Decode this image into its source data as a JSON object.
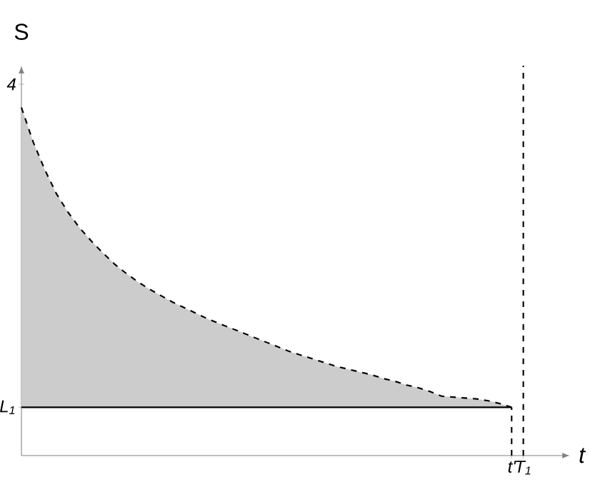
{
  "chart_data": {
    "type": "area",
    "xlabel": "t",
    "ylabel": "S",
    "categories": [
      null,
      null,
      null,
      null,
      null,
      null,
      null,
      null,
      null,
      null,
      null,
      null,
      null,
      null,
      null,
      null,
      null,
      null,
      null,
      null,
      null,
      null,
      null,
      null,
      null,
      null,
      null,
      null,
      null,
      null,
      null,
      null,
      null,
      null,
      null,
      null,
      null,
      null,
      null,
      null,
      null,
      null,
      "t'",
      "T$_{1}$",
      null,
      null,
      null,
      null
    ],
    "series": [
      {
        "color": "#cccccc",
        "values": [
          3.75,
          3.38,
          3.08,
          2.82,
          2.62,
          2.45,
          2.31,
          2.18,
          2.06,
          1.96,
          1.87,
          1.79,
          1.72,
          1.65,
          1.59,
          1.53,
          1.47,
          1.42,
          1.37,
          1.32,
          1.27,
          1.22,
          1.17,
          1.12,
          1.08,
          1.04,
          1.0,
          0.96,
          0.93,
          0.9,
          0.87,
          0.83,
          0.8,
          0.76,
          0.73,
          0.69,
          0.64,
          0.63,
          0.62,
          0.61,
          0.59,
          0.56,
          0.52,
          null,
          null,
          null,
          null,
          null
        ]
      }
    ],
    "line_style": "dashed",
    "ylim": [
      0,
      4.2
    ],
    "yticks": [
      {
        "value": 0.52,
        "label": "L$_{1}$"
      },
      4
    ],
    "ref_lines": [
      {
        "axis": "y",
        "value": 0.52,
        "color": "#000000",
        "line_style": "solid"
      },
      {
        "axis": "x",
        "value": "t'",
        "color": "#000000",
        "line_style": "dashed"
      },
      {
        "axis": "x",
        "value": "T$_{1}$",
        "color": "#000000",
        "line_style": "dashed"
      }
    ]
  }
}
